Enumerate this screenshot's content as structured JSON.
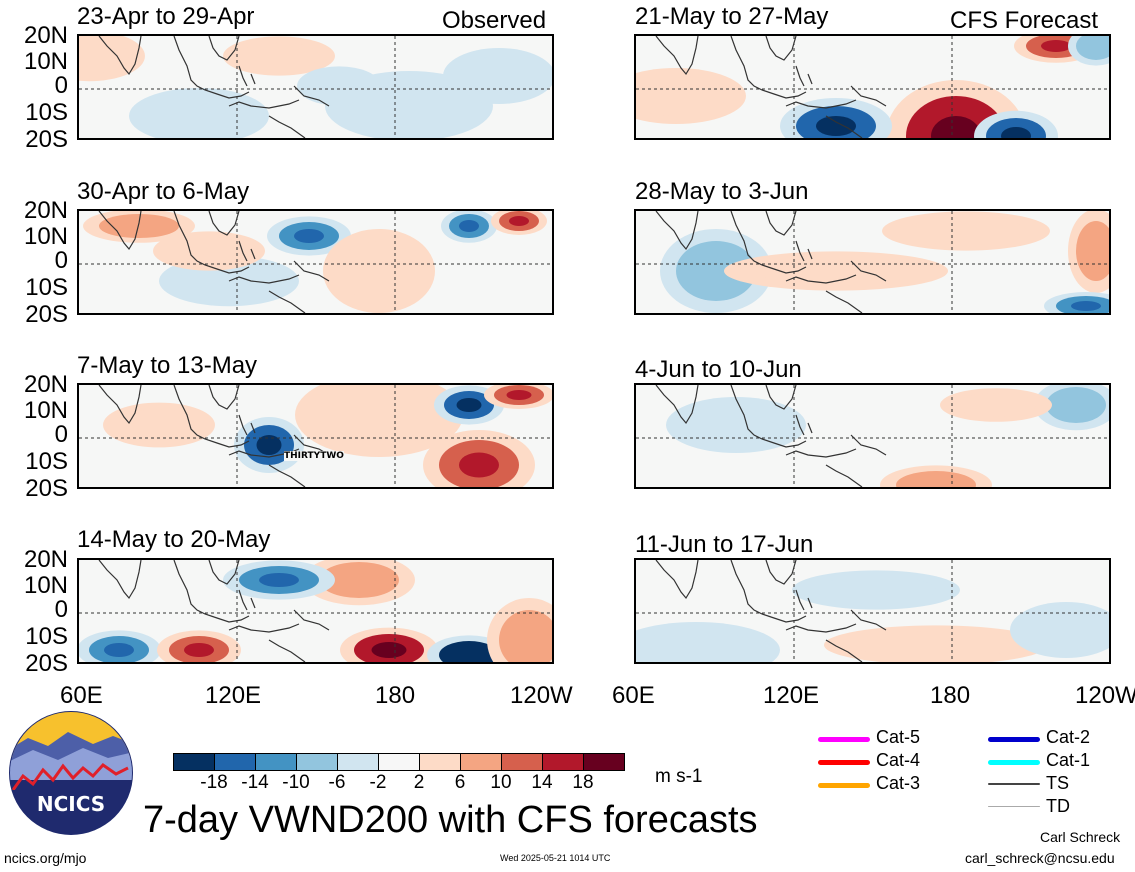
{
  "headers": {
    "observed": "Observed",
    "forecast": "CFS Forecast"
  },
  "panels_left": [
    {
      "title": "23-Apr to 29-Apr"
    },
    {
      "title": "30-Apr to 6-May"
    },
    {
      "title": "7-May to 13-May",
      "annotation": "THIRTYTWO"
    },
    {
      "title": "14-May to 20-May"
    }
  ],
  "panels_right": [
    {
      "title": "21-May to 27-May"
    },
    {
      "title": "28-May to 3-Jun"
    },
    {
      "title": "4-Jun to 10-Jun"
    },
    {
      "title": "11-Jun to 17-Jun"
    }
  ],
  "lat_labels": [
    "20N",
    "10N",
    "0",
    "10S",
    "20S"
  ],
  "lon_labels": [
    "60E",
    "120E",
    "180",
    "120W"
  ],
  "colorbar": {
    "ticks": [
      "-18",
      "-14",
      "-10",
      "-6",
      "-2",
      "2",
      "6",
      "10",
      "14",
      "18"
    ],
    "colors": [
      "#053061",
      "#2166ac",
      "#4393c3",
      "#92c5de",
      "#d1e5f0",
      "#f7f7f7",
      "#fddbc7",
      "#f4a582",
      "#d6604d",
      "#b2182b",
      "#67001f"
    ],
    "units": "m s-1"
  },
  "legend": [
    {
      "label": "Cat-5",
      "color": "#ff00ff"
    },
    {
      "label": "Cat-4",
      "color": "#ff0000"
    },
    {
      "label": "Cat-3",
      "color": "#ffa500"
    },
    {
      "label": "Cat-2",
      "color": "#0000cc"
    },
    {
      "label": "Cat-1",
      "color": "#00ffff"
    },
    {
      "label": "TS",
      "color": "#444444"
    },
    {
      "label": "TD",
      "color": "#aaaaaa"
    }
  ],
  "logo": {
    "text": "NCICS"
  },
  "main_title": "7-day VWND200 with CFS forecasts",
  "footer": {
    "url": "ncics.org/mjo",
    "timestamp": "Wed 2025-05-21 1014 UTC",
    "author": "Carl Schreck",
    "email": "carl_schreck@ncsu.edu"
  }
}
